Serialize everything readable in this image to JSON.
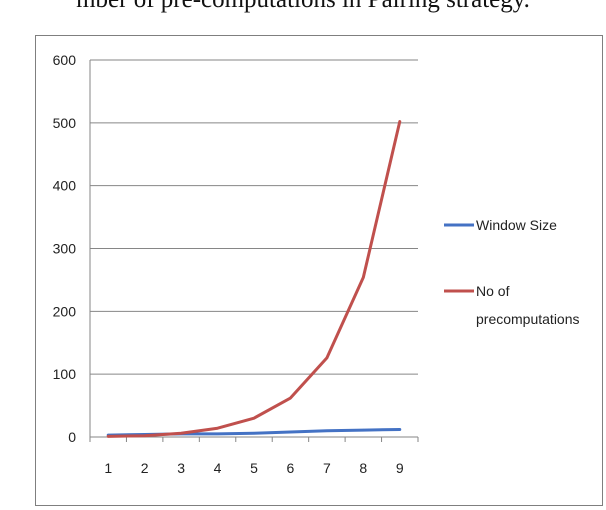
{
  "page": {
    "caption_fragment": "mber of pre-computations in Pairing strategy."
  },
  "chart_data": {
    "type": "line",
    "x": [
      1,
      2,
      3,
      4,
      5,
      6,
      7,
      8,
      9
    ],
    "xticks": [
      "1",
      "2",
      "3",
      "4",
      "5",
      "6",
      "7",
      "8",
      "9"
    ],
    "ylim": [
      0,
      600
    ],
    "yticks": [
      "0",
      "100",
      "200",
      "300",
      "400",
      "500",
      "600"
    ],
    "grid": true,
    "legend_position": "right",
    "series": [
      {
        "name": "Window Size",
        "color": "#4472c4",
        "values": [
          3,
          4,
          5,
          5,
          6,
          8,
          10,
          11,
          12
        ]
      },
      {
        "name": "No of precomputations",
        "legend_lines": [
          "No of",
          "precomputations"
        ],
        "color": "#c0504d",
        "values": [
          1,
          2,
          6,
          14,
          30,
          62,
          126,
          254,
          502
        ]
      }
    ]
  }
}
